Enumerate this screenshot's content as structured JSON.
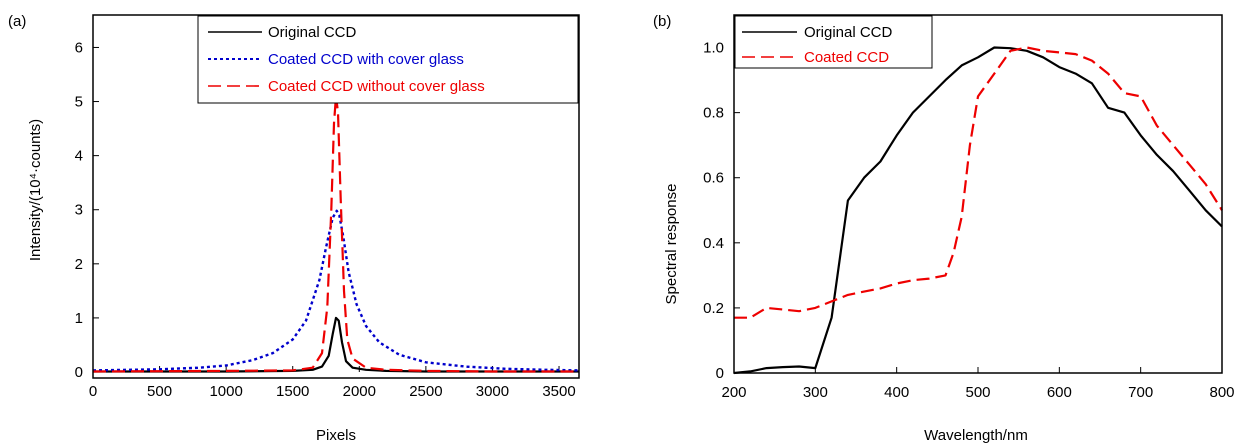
{
  "chart_data": [
    {
      "type": "line",
      "panel_label": "(a)",
      "xlabel": "Pixels",
      "ylabel": "Intensity/(10⁴·counts)",
      "xlim": [
        0,
        3650
      ],
      "ylim": [
        0,
        6.6
      ],
      "xticks": [
        0,
        500,
        1000,
        1500,
        2000,
        2500,
        3000,
        3500
      ],
      "yticks": [
        0,
        1,
        2,
        3,
        4,
        5,
        6
      ],
      "grid": false,
      "legend_position": "top-right",
      "series": [
        {
          "name": "Original CCD",
          "color": "#000000",
          "dash": "solid",
          "x": [
            0,
            1000,
            1500,
            1650,
            1720,
            1770,
            1800,
            1825,
            1845,
            1870,
            1900,
            1950,
            2050,
            2200,
            2500,
            3000,
            3650
          ],
          "y": [
            0.01,
            0.01,
            0.02,
            0.04,
            0.1,
            0.3,
            0.7,
            1.0,
            0.95,
            0.55,
            0.2,
            0.08,
            0.04,
            0.02,
            0.01,
            0.01,
            0.01
          ]
        },
        {
          "name": "Coated CCD with cover glass",
          "color": "#0000cc",
          "dash": "dotted",
          "x": [
            0,
            500,
            800,
            1000,
            1200,
            1350,
            1500,
            1600,
            1700,
            1750,
            1800,
            1830,
            1850,
            1880,
            1920,
            1980,
            2050,
            2150,
            2300,
            2500,
            2800,
            3100,
            3400,
            3650
          ],
          "y": [
            0.03,
            0.05,
            0.08,
            0.12,
            0.22,
            0.35,
            0.6,
            0.95,
            1.7,
            2.3,
            2.85,
            2.98,
            2.9,
            2.5,
            1.85,
            1.25,
            0.85,
            0.55,
            0.32,
            0.18,
            0.1,
            0.06,
            0.04,
            0.03
          ]
        },
        {
          "name": "Coated CCD without cover glass",
          "color": "#ee0000",
          "dash": "dashed",
          "x": [
            0,
            1000,
            1500,
            1650,
            1720,
            1760,
            1790,
            1810,
            1825,
            1840,
            1860,
            1885,
            1910,
            1950,
            2050,
            2200,
            2500,
            3000,
            3650
          ],
          "y": [
            0.01,
            0.02,
            0.03,
            0.08,
            0.35,
            1.2,
            3.0,
            4.6,
            5.1,
            4.8,
            3.2,
            1.5,
            0.6,
            0.25,
            0.08,
            0.04,
            0.02,
            0.01,
            0.01
          ]
        }
      ]
    },
    {
      "type": "line",
      "panel_label": "(b)",
      "xlabel": "Wavelength/nm",
      "ylabel": "Spectral response",
      "xlim": [
        200,
        800
      ],
      "ylim": [
        0,
        1.1
      ],
      "xticks": [
        200,
        300,
        400,
        500,
        600,
        700,
        800
      ],
      "yticks": [
        0,
        0.2,
        0.4,
        0.6,
        0.8,
        1.0
      ],
      "ytick_labels": [
        "0",
        "0.2",
        "0.4",
        "0.6",
        "0.8",
        "1.0"
      ],
      "grid": false,
      "legend_position": "top-left",
      "series": [
        {
          "name": "Original CCD",
          "color": "#000000",
          "dash": "solid",
          "x": [
            200,
            220,
            240,
            260,
            280,
            300,
            320,
            340,
            360,
            380,
            400,
            420,
            440,
            460,
            480,
            500,
            520,
            540,
            560,
            580,
            600,
            620,
            640,
            660,
            680,
            700,
            720,
            740,
            760,
            780,
            800
          ],
          "y": [
            0.0,
            0.005,
            0.015,
            0.018,
            0.02,
            0.015,
            0.17,
            0.53,
            0.6,
            0.65,
            0.73,
            0.8,
            0.85,
            0.9,
            0.945,
            0.97,
            1.0,
            0.998,
            0.99,
            0.97,
            0.94,
            0.92,
            0.89,
            0.815,
            0.8,
            0.73,
            0.67,
            0.62,
            0.56,
            0.5,
            0.45
          ]
        },
        {
          "name": "Coated CCD",
          "color": "#ee0000",
          "dash": "dashed",
          "x": [
            200,
            220,
            240,
            260,
            280,
            300,
            320,
            340,
            360,
            380,
            400,
            420,
            440,
            460,
            470,
            480,
            490,
            500,
            520,
            540,
            560,
            580,
            600,
            620,
            640,
            660,
            680,
            700,
            720,
            740,
            760,
            780,
            800
          ],
          "y": [
            0.17,
            0.17,
            0.2,
            0.195,
            0.19,
            0.2,
            0.22,
            0.24,
            0.25,
            0.26,
            0.275,
            0.285,
            0.29,
            0.3,
            0.37,
            0.48,
            0.7,
            0.85,
            0.92,
            0.99,
            1.0,
            0.99,
            0.985,
            0.98,
            0.96,
            0.92,
            0.86,
            0.85,
            0.76,
            0.7,
            0.64,
            0.58,
            0.5
          ]
        }
      ]
    }
  ]
}
